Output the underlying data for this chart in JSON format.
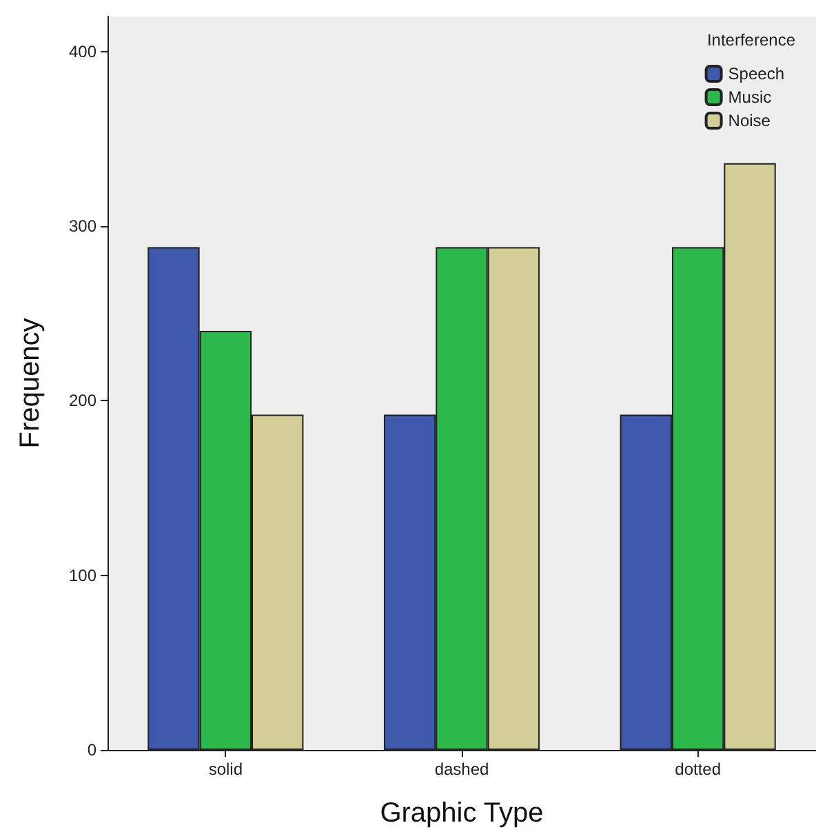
{
  "chart_data": {
    "type": "bar",
    "xlabel": "Graphic Type",
    "ylabel": "Frequency",
    "legend_title": "Interference",
    "categories": [
      "solid",
      "dashed",
      "dotted"
    ],
    "series": [
      {
        "name": "Speech",
        "color": "#3e58ac",
        "values": [
          288,
          192,
          192
        ]
      },
      {
        "name": "Music",
        "color": "#2db84c",
        "values": [
          240,
          288,
          288
        ]
      },
      {
        "name": "Noise",
        "color": "#d3ce98",
        "values": [
          192,
          288,
          336
        ]
      }
    ],
    "ylim": [
      0,
      420
    ],
    "yticks": [
      0,
      100,
      200,
      300,
      400
    ],
    "grid": false,
    "legend": "top right"
  }
}
